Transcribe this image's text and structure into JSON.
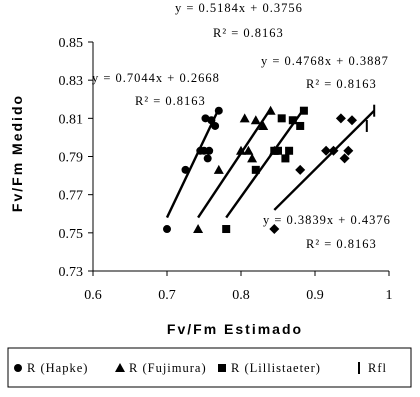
{
  "chart_data": {
    "type": "scatter",
    "title": "",
    "xlabel": "Fv/Fm Estimado",
    "ylabel": "Fv/Fm Medido",
    "xlim": [
      0.6,
      1.0
    ],
    "ylim": [
      0.73,
      0.85
    ],
    "x_ticks": [
      "0.6",
      "0.7",
      "0.8",
      "0.9",
      "1"
    ],
    "y_ticks": [
      "0.73",
      "0.75",
      "0.77",
      "0.79",
      "0.81",
      "0.83",
      "0.85"
    ],
    "grid": false,
    "legend_position": "bottom",
    "series": [
      {
        "name": "R (Hapke)",
        "marker": "circle",
        "points": [
          [
            0.7,
            0.752
          ],
          [
            0.725,
            0.783
          ],
          [
            0.745,
            0.793
          ],
          [
            0.75,
            0.793
          ],
          [
            0.752,
            0.81
          ],
          [
            0.755,
            0.789
          ],
          [
            0.757,
            0.793
          ],
          [
            0.76,
            0.809
          ],
          [
            0.765,
            0.806
          ],
          [
            0.77,
            0.814
          ]
        ],
        "trendline": {
          "equation": "y = 0.7044x + 0.2668",
          "r2": "R² = 0.8163",
          "x_range": [
            0.7,
            0.77
          ],
          "y_range": [
            0.758,
            0.815
          ]
        }
      },
      {
        "name": "R (Fujimura)",
        "marker": "triangle",
        "points": [
          [
            0.742,
            0.752
          ],
          [
            0.77,
            0.783
          ],
          [
            0.8,
            0.793
          ],
          [
            0.805,
            0.81
          ],
          [
            0.81,
            0.793
          ],
          [
            0.815,
            0.789
          ],
          [
            0.82,
            0.809
          ],
          [
            0.83,
            0.806
          ],
          [
            0.84,
            0.814
          ],
          [
            0.845,
            0.793
          ]
        ],
        "trendline": {
          "equation": "y = 0.5184x + 0.3756",
          "r2": "R² = 0.8163",
          "x_range": [
            0.742,
            0.84
          ],
          "y_range": [
            0.758,
            0.815
          ]
        }
      },
      {
        "name": "R (Lillistaeter)",
        "marker": "square",
        "points": [
          [
            0.78,
            0.752
          ],
          [
            0.82,
            0.783
          ],
          [
            0.845,
            0.793
          ],
          [
            0.855,
            0.81
          ],
          [
            0.86,
            0.789
          ],
          [
            0.865,
            0.793
          ],
          [
            0.87,
            0.809
          ],
          [
            0.88,
            0.806
          ],
          [
            0.885,
            0.814
          ],
          [
            0.85,
            0.793
          ]
        ],
        "trendline": {
          "equation": "y = 0.4768x + 0.3887",
          "r2": "R² = 0.8163",
          "x_range": [
            0.78,
            0.885
          ],
          "y_range": [
            0.758,
            0.815
          ]
        }
      },
      {
        "name": "Rfl",
        "marker": "bar",
        "points": [
          [
            0.845,
            0.752
          ],
          [
            0.88,
            0.783
          ],
          [
            0.915,
            0.793
          ],
          [
            0.935,
            0.81
          ],
          [
            0.94,
            0.789
          ],
          [
            0.945,
            0.793
          ],
          [
            0.95,
            0.809
          ],
          [
            0.925,
            0.793
          ],
          [
            0.97,
            0.806
          ],
          [
            0.98,
            0.814
          ]
        ],
        "marker_colors": [
          "#000000",
          "#000000",
          "#000000",
          "#000000",
          "#000000",
          "#000000",
          "#000000",
          "#000000",
          "#000000",
          "#000000"
        ],
        "drawn_markers": [
          "diamond",
          "diamond",
          "diamond",
          "diamond",
          "diamond",
          "diamond",
          "diamond",
          "diamond",
          "bar",
          "bar"
        ],
        "trendline": {
          "equation": "y = 0.3839x + 0.4376",
          "r2": "R² = 0.8163",
          "x_range": [
            0.845,
            0.98
          ],
          "y_range": [
            0.762,
            0.814
          ]
        }
      }
    ]
  }
}
